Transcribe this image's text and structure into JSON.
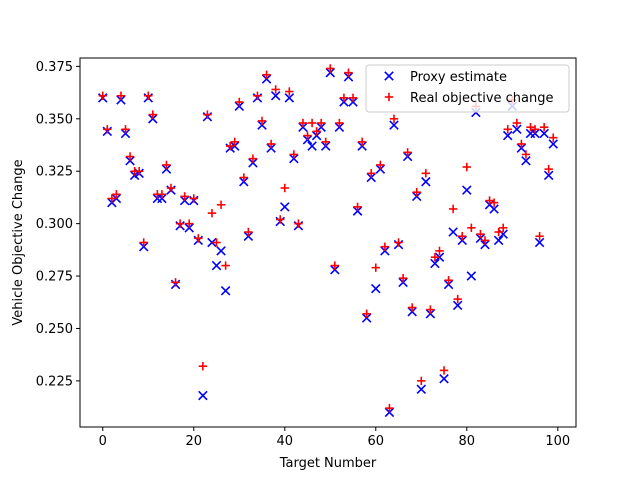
{
  "chart_data": {
    "type": "scatter",
    "xlabel": "Target Number",
    "ylabel": "Vehicle Objective Change",
    "xlim": [
      -5,
      104
    ],
    "ylim": [
      0.203,
      0.379
    ],
    "xticks": [
      0,
      20,
      40,
      60,
      80,
      100
    ],
    "yticks": [
      0.225,
      0.25,
      0.275,
      0.3,
      0.325,
      0.35,
      0.375
    ],
    "ytick_labels": [
      "0.225",
      "0.250",
      "0.275",
      "0.300",
      "0.325",
      "0.350",
      "0.375"
    ],
    "grid": false,
    "legend": "top-right",
    "series": [
      {
        "name": "Proxy estimate",
        "marker": "x",
        "color": "#0000ff",
        "x": [
          0,
          1,
          2,
          3,
          4,
          5,
          6,
          7,
          8,
          9,
          10,
          11,
          12,
          13,
          14,
          15,
          16,
          17,
          18,
          19,
          20,
          21,
          22,
          23,
          24,
          25,
          26,
          27,
          28,
          29,
          30,
          31,
          32,
          33,
          34,
          35,
          36,
          37,
          38,
          39,
          40,
          41,
          42,
          43,
          44,
          45,
          46,
          47,
          48,
          49,
          50,
          51,
          52,
          53,
          54,
          55,
          56,
          57,
          58,
          59,
          60,
          61,
          62,
          63,
          64,
          65,
          66,
          67,
          68,
          69,
          70,
          71,
          72,
          73,
          74,
          75,
          76,
          77,
          78,
          79,
          80,
          81,
          82,
          83,
          84,
          85,
          86,
          87,
          88,
          89,
          90,
          91,
          92,
          93,
          94,
          95,
          96,
          97,
          98,
          99
        ],
        "y": [
          0.36,
          0.344,
          0.31,
          0.312,
          0.359,
          0.343,
          0.33,
          0.323,
          0.324,
          0.289,
          0.36,
          0.35,
          0.312,
          0.312,
          0.326,
          0.316,
          0.271,
          0.299,
          0.311,
          0.298,
          0.311,
          0.292,
          0.218,
          0.351,
          0.291,
          0.28,
          0.287,
          0.268,
          0.336,
          0.337,
          0.356,
          0.32,
          0.294,
          0.329,
          0.36,
          0.347,
          0.369,
          0.336,
          0.361,
          0.301,
          0.308,
          0.36,
          0.331,
          0.299,
          0.346,
          0.34,
          0.337,
          0.342,
          0.346,
          0.337,
          0.372,
          0.278,
          0.346,
          0.358,
          0.37,
          0.358,
          0.306,
          0.337,
          0.255,
          0.322,
          0.269,
          0.326,
          0.287,
          0.21,
          0.347,
          0.29,
          0.272,
          0.332,
          0.258,
          0.313,
          0.221,
          0.32,
          0.257,
          0.281,
          0.284,
          0.226,
          0.271,
          0.296,
          0.261,
          0.292,
          0.316,
          0.275,
          0.353,
          0.293,
          0.29,
          0.309,
          0.307,
          0.292,
          0.295,
          0.342,
          0.356,
          0.345,
          0.336,
          0.33,
          0.343,
          0.343,
          0.291,
          0.343,
          0.323,
          0.338
        ]
      },
      {
        "name": "Real objective change",
        "marker": "+",
        "color": "#ff0000",
        "x": [
          0,
          1,
          2,
          3,
          4,
          5,
          6,
          7,
          8,
          9,
          10,
          11,
          12,
          13,
          14,
          15,
          16,
          17,
          18,
          19,
          20,
          21,
          22,
          23,
          24,
          25,
          26,
          27,
          28,
          29,
          30,
          31,
          32,
          33,
          34,
          35,
          36,
          37,
          38,
          39,
          40,
          41,
          42,
          43,
          44,
          45,
          46,
          47,
          48,
          49,
          50,
          51,
          52,
          53,
          54,
          55,
          56,
          57,
          58,
          59,
          60,
          61,
          62,
          63,
          64,
          65,
          66,
          67,
          68,
          69,
          70,
          71,
          72,
          73,
          74,
          75,
          76,
          77,
          78,
          79,
          80,
          81,
          82,
          83,
          84,
          85,
          86,
          87,
          88,
          89,
          90,
          91,
          92,
          93,
          94,
          95,
          96,
          97,
          98,
          99
        ],
        "y": [
          0.361,
          0.345,
          0.312,
          0.314,
          0.361,
          0.345,
          0.332,
          0.325,
          0.325,
          0.291,
          0.361,
          0.352,
          0.314,
          0.314,
          0.328,
          0.317,
          0.272,
          0.3,
          0.313,
          0.3,
          0.312,
          0.293,
          0.232,
          0.352,
          0.305,
          0.291,
          0.309,
          0.28,
          0.337,
          0.339,
          0.358,
          0.322,
          0.296,
          0.331,
          0.361,
          0.349,
          0.371,
          0.338,
          0.364,
          0.302,
          0.317,
          0.363,
          0.333,
          0.3,
          0.348,
          0.342,
          0.348,
          0.344,
          0.348,
          0.339,
          0.374,
          0.28,
          0.348,
          0.36,
          0.372,
          0.36,
          0.308,
          0.339,
          0.257,
          0.324,
          0.279,
          0.328,
          0.289,
          0.212,
          0.35,
          0.291,
          0.274,
          0.334,
          0.26,
          0.315,
          0.225,
          0.324,
          0.259,
          0.284,
          0.287,
          0.23,
          0.273,
          0.307,
          0.264,
          0.294,
          0.327,
          0.298,
          0.356,
          0.295,
          0.292,
          0.311,
          0.31,
          0.296,
          0.298,
          0.345,
          0.359,
          0.348,
          0.338,
          0.333,
          0.346,
          0.345,
          0.294,
          0.346,
          0.326,
          0.341
        ]
      }
    ]
  }
}
